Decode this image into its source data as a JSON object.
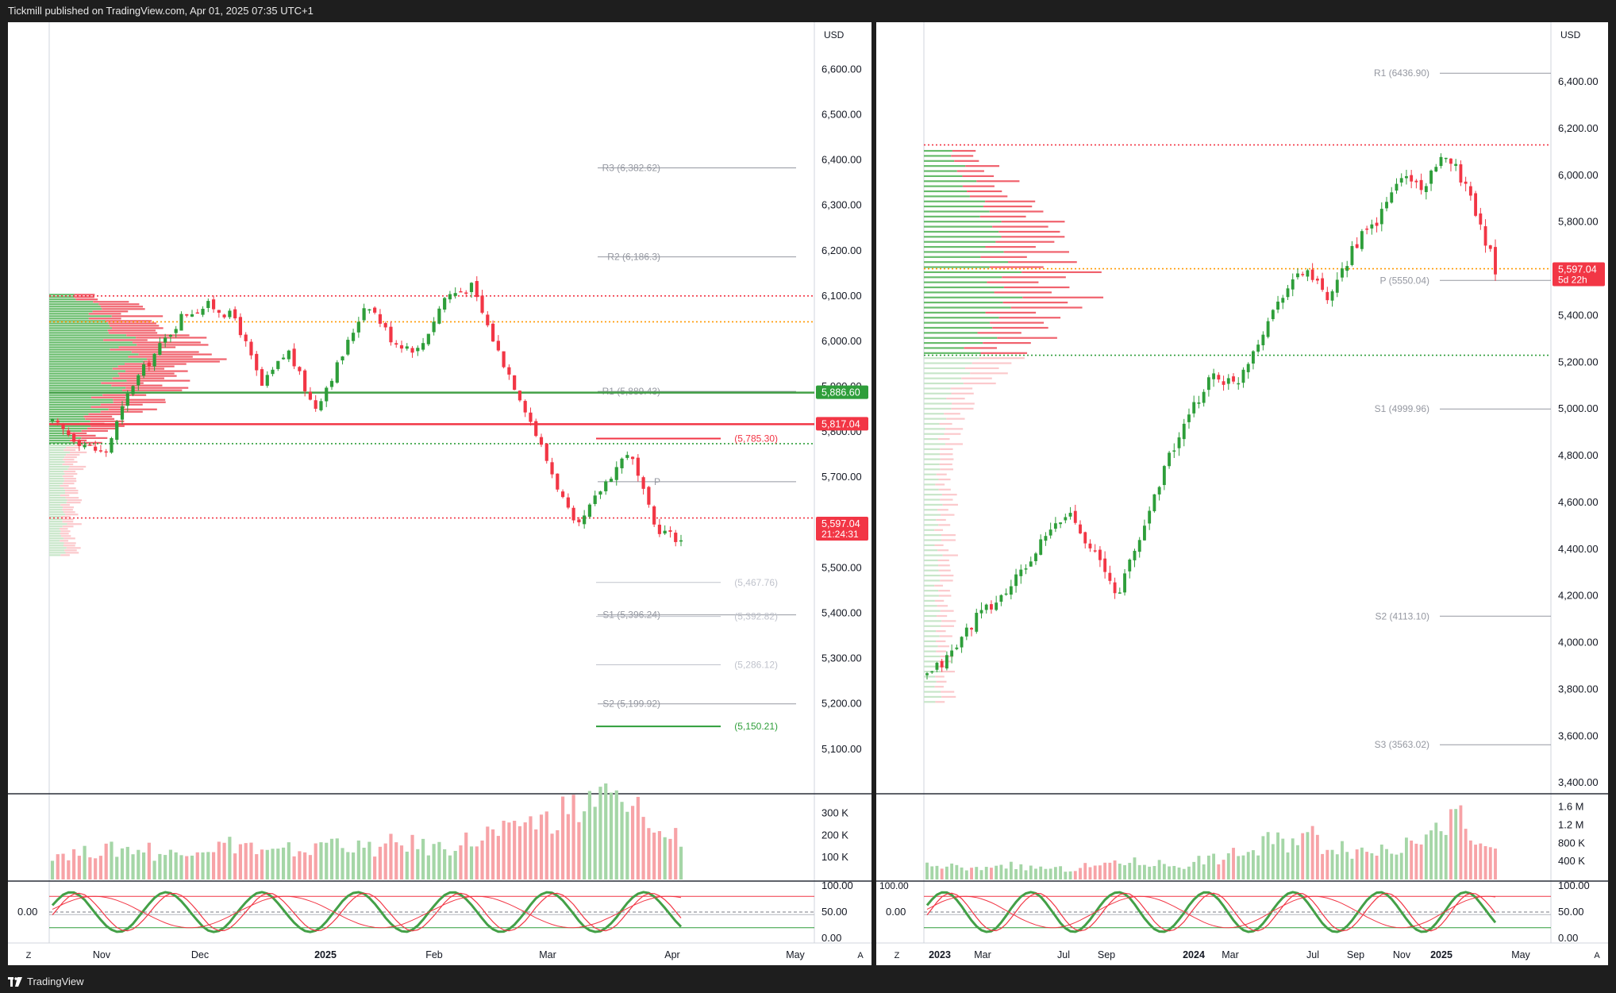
{
  "header": {
    "publisher": "Tickmill published on TradingView.com, Apr 01, 2025 07:35 UTC+1"
  },
  "footer": {
    "brand": "TradingView"
  },
  "colors": {
    "up": "#2e9e3a",
    "down": "#f23645",
    "upVol": "#a5d6a7",
    "downVol": "#f7a3a7",
    "axisText": "#131722",
    "levelText": "#9598a1"
  },
  "charts": [
    {
      "id": "left",
      "currency": "USD",
      "yticks": [
        "6,600.00",
        "6,500.00",
        "6,400.00",
        "6,300.00",
        "6,200.00",
        "6,100.00",
        "6,000.00",
        "5,900.00",
        "5,800.00",
        "5,700.00",
        "5,600.00",
        "5,500.00",
        "5,400.00",
        "5,300.00",
        "5,200.00",
        "5,100.00"
      ],
      "ytickValues": [
        6600,
        6500,
        6400,
        6300,
        6200,
        6100,
        6000,
        5900,
        5800,
        5700,
        5600,
        5500,
        5400,
        5300,
        5200,
        5100
      ],
      "yRange": [
        5005,
        6655
      ],
      "xlabels": [
        "Nov",
        "Dec",
        "2025",
        "Feb",
        "Mar",
        "Apr",
        "May"
      ],
      "xlabelBold": [
        false,
        false,
        true,
        false,
        false,
        false,
        false
      ],
      "zlabel": "Z",
      "alabel": "A",
      "priceBadges": [
        {
          "text": "5,886.60",
          "value": 5886.6,
          "color": "#2e9e3a"
        },
        {
          "text": "5,817.04",
          "value": 5817.04,
          "color": "#f23645"
        },
        {
          "text": "5,597.04",
          "sub": "21:24:31",
          "value": 5597.04,
          "color": "#f23645"
        }
      ],
      "pivotLevels": [
        {
          "label": "R3 (6,382.62)",
          "value": 6382.62
        },
        {
          "label": "R2 (6,186.3)",
          "value": 6186.3
        },
        {
          "label": "R1 (5,889.43)",
          "value": 5889.43
        },
        {
          "label": "P",
          "value": 5690
        },
        {
          "label": "S1 (5,396.24)",
          "value": 5396.24
        },
        {
          "label": "S2 (5,199.92)",
          "value": 5199.92
        }
      ],
      "fibLevels": [
        {
          "label": "(5,785.30)",
          "value": 5785.3,
          "color": "#f23645"
        },
        {
          "label": "(5,467.76)",
          "value": 5467.76,
          "color": "#c0c3cc"
        },
        {
          "label": "(5,392.82)",
          "value": 5392.82,
          "color": "#c0c3cc"
        },
        {
          "label": "(5,286.12)",
          "value": 5286.12,
          "color": "#c0c3cc"
        },
        {
          "label": "(5,150.21)",
          "value": 5150.21,
          "color": "#2e9e3a"
        }
      ],
      "volTicks": [
        "300 K",
        "200 K",
        "100 K"
      ],
      "volTickValues": [
        300,
        200,
        100
      ],
      "oscTicks": [
        "100.00",
        "50.00",
        "0.00"
      ],
      "oscLeftLabel": "0.00"
    },
    {
      "id": "right",
      "currency": "USD",
      "yticks": [
        "6,400.00",
        "6,200.00",
        "6,000.00",
        "5,800.00",
        "5,400.00",
        "5,200.00",
        "5,000.00",
        "4,800.00",
        "4,600.00",
        "4,400.00",
        "4,200.00",
        "4,000.00",
        "3,800.00",
        "3,600.00",
        "3,400.00"
      ],
      "ytickValues": [
        6400,
        6200,
        6000,
        5800,
        5400,
        5200,
        5000,
        4800,
        4600,
        4400,
        4200,
        4000,
        3800,
        3600,
        3400
      ],
      "yRange": [
        3360,
        6560
      ],
      "xlabels": [
        "2023",
        "Mar",
        "Jul",
        "Sep",
        "2024",
        "Mar",
        "Jul",
        "Sep",
        "Nov",
        "2025",
        "May"
      ],
      "xlabelBold": [
        true,
        false,
        false,
        false,
        true,
        false,
        false,
        false,
        false,
        true,
        false
      ],
      "zlabel": "Z",
      "alabel": "A",
      "priceBadges": [
        {
          "text": "5,597.04",
          "sub": "5d 22h",
          "value": 5597.04,
          "color": "#f23645"
        }
      ],
      "pivotLevels": [
        {
          "label": "R1 (6436.90)",
          "value": 6436.9
        },
        {
          "label": "P (5550.04)",
          "value": 5550.04
        },
        {
          "label": "S1 (4999.96)",
          "value": 4999.96
        },
        {
          "label": "S2 (4113.10)",
          "value": 4113.1
        },
        {
          "label": "S3 (3563.02)",
          "value": 3563.02
        }
      ],
      "volTicks": [
        "1.6 M",
        "1.2 M",
        "800 K",
        "400 K"
      ],
      "volTickValues": [
        1.6,
        1.2,
        0.8,
        0.4
      ],
      "oscTicks": [
        "100.00",
        "50.00",
        "0.00"
      ],
      "oscLeftLabel": "0.00",
      "oscTopLeft": "100.00"
    }
  ]
}
